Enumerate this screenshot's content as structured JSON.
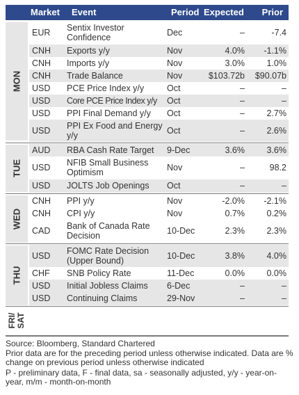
{
  "header": {
    "market": "Market",
    "event": "Event",
    "period": "Period",
    "expected": "Expected",
    "prior": "Prior"
  },
  "days": [
    {
      "label": "MON"
    },
    {
      "label": "TUE"
    },
    {
      "label": "WED"
    },
    {
      "label": "THU"
    },
    {
      "label": "FRI/\nSAT"
    }
  ],
  "rows": [
    {
      "market": "EUR",
      "event": "Sentix Investor Confidence",
      "period": "Dec",
      "expected": "–",
      "prior": "-7.4"
    },
    {
      "market": "CNH",
      "event": "Exports y/y",
      "period": "Nov",
      "expected": "4.0%",
      "prior": "-1.1%"
    },
    {
      "market": "CNH",
      "event": "Imports y/y",
      "period": "Nov",
      "expected": "3.0%",
      "prior": "1.0%"
    },
    {
      "market": "CNH",
      "event": "Trade Balance",
      "period": "Nov",
      "expected": "$103.72b",
      "prior": "$90.07b"
    },
    {
      "market": "USD",
      "event": "PCE Price Index y/y",
      "period": "Oct",
      "expected": "–",
      "prior": "–"
    },
    {
      "market": "USD",
      "event": "Core PCE Price Index y/y",
      "period": "Oct",
      "expected": "–",
      "prior": "–"
    },
    {
      "market": "USD",
      "event": "PPI Final Demand y/y",
      "period": "Oct",
      "expected": "–",
      "prior": "2.7%"
    },
    {
      "market": "USD",
      "event": "PPI Ex Food and Energy y/y",
      "period": "Oct",
      "expected": "–",
      "prior": "2.6%"
    },
    {
      "market": "AUD",
      "event": "RBA Cash Rate Target",
      "period": "9-Dec",
      "expected": "3.6%",
      "prior": "3.6%"
    },
    {
      "market": "USD",
      "event": "NFIB Small Business Optimism",
      "period": "Nov",
      "expected": "–",
      "prior": "98.2"
    },
    {
      "market": "USD",
      "event": "JOLTS Job Openings",
      "period": "Oct",
      "expected": "–",
      "prior": "–"
    },
    {
      "market": "CNH",
      "event": "PPI y/y",
      "period": "Nov",
      "expected": "-2.0%",
      "prior": "-2.1%"
    },
    {
      "market": "CNH",
      "event": "CPI y/y",
      "period": "Nov",
      "expected": "0.7%",
      "prior": "0.2%"
    },
    {
      "market": "CAD",
      "event": "Bank of Canada Rate Decision",
      "period": "10-Dec",
      "expected": "2.3%",
      "prior": "2.3%"
    },
    {
      "market": "USD",
      "event": "FOMC Rate Decision (Upper Bound)",
      "period": "10-Dec",
      "expected": "3.8%",
      "prior": "4.0%"
    },
    {
      "market": "CHF",
      "event": "SNB Policy Rate",
      "period": "11-Dec",
      "expected": "0.0%",
      "prior": "0.0%"
    },
    {
      "market": "USD",
      "event": "Initial Jobless Claims",
      "period": "6-Dec",
      "expected": "–",
      "prior": "–"
    },
    {
      "market": "USD",
      "event": "Continuing Claims",
      "period": "29-Nov",
      "expected": "–",
      "prior": "–"
    }
  ],
  "footer": {
    "source": "Source: Bloomberg, Standard Chartered",
    "note1": "Prior data are for the preceding period unless otherwise indicated. Data are % change on previous period unless otherwise indicated",
    "note2": "P - preliminary data, F - final data, sa - seasonally adjusted, y/y - year-on-year, m/m - month-on-month"
  }
}
